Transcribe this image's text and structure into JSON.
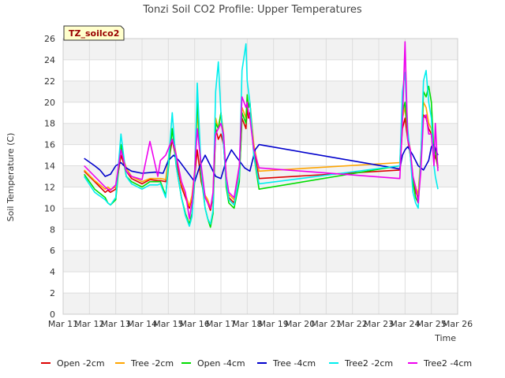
{
  "chart_data": {
    "type": "line",
    "title": "Tonzi Soil CO2 Profile: Upper Temperatures",
    "xlabel": "Time",
    "ylabel": "Soil Temperature (C)",
    "site_badge": "TZ_soilco2",
    "xlim": [
      0,
      15
    ],
    "ylim": [
      0,
      26
    ],
    "yticks": [
      0,
      2,
      4,
      6,
      8,
      10,
      12,
      14,
      16,
      18,
      20,
      22,
      24,
      26
    ],
    "yticks_labels": [
      "0",
      "2",
      "4",
      "6",
      "8",
      "10",
      "12",
      "14",
      "16",
      "18",
      "20",
      "22",
      "24",
      "26"
    ],
    "xticks": [
      0,
      1,
      2,
      3,
      4,
      5,
      6,
      7,
      8,
      9,
      10,
      11,
      12,
      13,
      14,
      15
    ],
    "xtick_labels": [
      "Mar 11",
      "Mar 12",
      "Mar 13",
      "Mar 14",
      "Mar 15",
      "Mar 16",
      "Mar 17",
      "Mar 18",
      "Mar 19",
      "Mar 20",
      "Mar 21",
      "Mar 22",
      "Mar 23",
      "Mar 24",
      "Mar 25",
      "Mar 26"
    ],
    "grid": true,
    "background_bands": true,
    "legend_position": "bottom",
    "series": [
      {
        "name": "Open -2cm",
        "color": "#dd0000",
        "x": [
          0.8,
          1.2,
          1.6,
          1.7,
          1.8,
          2.0,
          2.2,
          2.4,
          2.6,
          3.0,
          3.3,
          3.6,
          3.7,
          3.9,
          4.15,
          4.3,
          4.5,
          4.65,
          4.8,
          4.9,
          5.0,
          5.1,
          5.25,
          5.4,
          5.5,
          5.6,
          5.7,
          5.75,
          5.8,
          5.9,
          6.0,
          6.1,
          6.2,
          6.3,
          6.5,
          6.7,
          6.8,
          6.95,
          7.0,
          7.05,
          7.1,
          7.25,
          7.45,
          12.8,
          12.9,
          13.0,
          13.1,
          13.2,
          13.3,
          13.4,
          13.5,
          13.6,
          13.7,
          13.8,
          13.9,
          14.0,
          14.1,
          14.15,
          14.25
        ],
        "y": [
          13.5,
          12.5,
          11.5,
          11.7,
          11.5,
          11.8,
          15.0,
          13.5,
          12.8,
          12.3,
          12.7,
          12.6,
          12.6,
          12.5,
          16.5,
          14.5,
          12.0,
          11.0,
          10.0,
          11.0,
          13.0,
          15.5,
          12.5,
          11.0,
          10.5,
          9.8,
          11.0,
          14.0,
          17.5,
          16.5,
          17.0,
          16.0,
          12.5,
          11.0,
          10.5,
          13.0,
          18.5,
          17.5,
          19.5,
          18.5,
          19.0,
          15.5,
          12.8,
          13.6,
          17.5,
          18.5,
          16.5,
          15.0,
          12.5,
          11.5,
          11.0,
          14.5,
          18.8,
          18.5,
          17.5,
          17.0,
          14.5,
          15.0,
          13.8
        ]
      },
      {
        "name": "Tree -2cm",
        "color": "#ffa500",
        "x": [
          0.8,
          1.2,
          1.6,
          1.7,
          1.8,
          2.0,
          2.2,
          2.4,
          2.6,
          3.0,
          3.3,
          3.6,
          3.7,
          3.9,
          4.15,
          4.3,
          4.5,
          4.65,
          4.8,
          4.9,
          5.0,
          5.1,
          5.25,
          5.4,
          5.5,
          5.6,
          5.7,
          5.75,
          5.8,
          5.9,
          6.0,
          6.1,
          6.2,
          6.3,
          6.5,
          6.7,
          6.8,
          6.95,
          7.0,
          7.05,
          7.1,
          7.25,
          7.45,
          12.8,
          12.9,
          13.0,
          13.1,
          13.2,
          13.3,
          13.4,
          13.5,
          13.6,
          13.7,
          13.8,
          13.9,
          14.0,
          14.1,
          14.15,
          14.25
        ],
        "y": [
          13.6,
          12.6,
          11.8,
          12.0,
          11.8,
          12.0,
          15.5,
          13.8,
          13.0,
          12.5,
          12.8,
          12.8,
          12.8,
          12.7,
          17.5,
          15.0,
          12.3,
          11.3,
          10.2,
          11.2,
          13.5,
          19.2,
          13.0,
          11.2,
          10.8,
          10.0,
          11.3,
          15.0,
          18.5,
          17.5,
          19.0,
          17.0,
          13.0,
          11.3,
          10.8,
          13.5,
          19.5,
          18.5,
          20.5,
          19.5,
          20.0,
          16.0,
          13.5,
          14.3,
          18.5,
          19.5,
          17.0,
          15.5,
          13.0,
          12.0,
          11.3,
          15.0,
          20.0,
          19.5,
          18.0,
          17.5,
          15.0,
          15.5,
          14.0
        ]
      },
      {
        "name": "Open -4cm",
        "color": "#00dd00",
        "x": [
          0.8,
          1.2,
          1.6,
          1.7,
          1.8,
          2.0,
          2.2,
          2.4,
          2.6,
          3.0,
          3.3,
          3.6,
          3.7,
          3.9,
          4.15,
          4.3,
          4.5,
          4.65,
          4.8,
          4.9,
          5.0,
          5.1,
          5.25,
          5.4,
          5.5,
          5.6,
          5.7,
          5.75,
          5.8,
          5.9,
          6.0,
          6.1,
          6.2,
          6.3,
          6.5,
          6.7,
          6.8,
          6.95,
          7.0,
          7.05,
          7.1,
          7.25,
          7.45,
          12.8,
          12.9,
          13.0,
          13.1,
          13.2,
          13.3,
          13.4,
          13.5,
          13.6,
          13.7,
          13.8,
          13.9,
          14.0,
          14.1,
          14.15,
          14.25
        ],
        "y": [
          13.2,
          11.8,
          11.0,
          10.5,
          10.3,
          10.8,
          16.0,
          13.0,
          12.5,
          12.0,
          12.5,
          12.5,
          12.5,
          11.2,
          17.5,
          14.0,
          11.0,
          9.5,
          8.5,
          9.5,
          12.5,
          20.5,
          13.0,
          10.0,
          9.0,
          8.2,
          9.5,
          14.0,
          18.0,
          17.5,
          19.0,
          16.5,
          12.0,
          10.5,
          10.0,
          12.5,
          19.0,
          18.0,
          20.7,
          19.5,
          20.0,
          15.0,
          11.8,
          14.0,
          19.0,
          20.0,
          17.0,
          15.0,
          12.5,
          11.0,
          10.5,
          14.5,
          21.0,
          20.5,
          21.5,
          20.0,
          15.0,
          15.5,
          13.8
        ]
      },
      {
        "name": "Tree -4cm",
        "color": "#0000cc",
        "x": [
          0.8,
          1.2,
          1.4,
          1.6,
          1.8,
          2.0,
          2.2,
          2.4,
          2.6,
          3.0,
          3.5,
          3.8,
          4.0,
          4.2,
          4.4,
          4.7,
          5.0,
          5.2,
          5.4,
          5.6,
          5.8,
          6.0,
          6.2,
          6.4,
          6.6,
          6.9,
          7.1,
          7.3,
          7.45,
          12.8,
          12.9,
          13.0,
          13.1,
          13.3,
          13.5,
          13.7,
          13.9,
          14.0,
          14.1,
          14.25
        ],
        "y": [
          14.7,
          14.0,
          13.6,
          13.0,
          13.2,
          14.0,
          14.3,
          13.8,
          13.5,
          13.3,
          13.4,
          13.3,
          14.5,
          15.0,
          14.5,
          13.5,
          12.5,
          14.0,
          15.0,
          14.0,
          13.0,
          12.8,
          14.5,
          15.5,
          14.8,
          13.8,
          13.5,
          15.5,
          16.0,
          13.7,
          15.0,
          15.5,
          15.8,
          15.0,
          14.0,
          13.6,
          14.5,
          15.8,
          16.0,
          15.0
        ]
      },
      {
        "name": "Tree2 -2cm",
        "color": "#00eeee",
        "x": [
          0.8,
          1.2,
          1.6,
          1.7,
          1.8,
          2.0,
          2.2,
          2.4,
          2.6,
          3.0,
          3.3,
          3.6,
          3.7,
          3.9,
          4.15,
          4.3,
          4.5,
          4.65,
          4.8,
          4.9,
          5.0,
          5.1,
          5.25,
          5.4,
          5.5,
          5.6,
          5.7,
          5.75,
          5.8,
          5.9,
          6.0,
          6.1,
          6.2,
          6.3,
          6.5,
          6.7,
          6.8,
          6.95,
          7.0,
          7.05,
          7.1,
          7.25,
          7.45,
          12.8,
          12.9,
          13.0,
          13.1,
          13.2,
          13.3,
          13.4,
          13.5,
          13.6,
          13.7,
          13.8,
          13.9,
          14.0,
          14.1,
          14.15,
          14.25
        ],
        "y": [
          13.0,
          11.5,
          10.8,
          10.5,
          10.3,
          11.0,
          17.0,
          13.0,
          12.3,
          11.8,
          12.2,
          12.2,
          12.3,
          11.0,
          19.0,
          14.0,
          11.0,
          9.3,
          8.3,
          9.2,
          13.0,
          21.8,
          13.5,
          10.0,
          9.0,
          8.5,
          9.8,
          16.0,
          21.0,
          23.8,
          19.0,
          16.0,
          12.5,
          10.8,
          10.3,
          13.0,
          23.0,
          25.5,
          22.0,
          21.0,
          20.0,
          15.0,
          12.3,
          14.0,
          21.0,
          22.8,
          17.5,
          15.0,
          11.5,
          10.5,
          10.0,
          14.5,
          22.0,
          23.0,
          20.0,
          18.5,
          14.0,
          13.0,
          11.8
        ]
      },
      {
        "name": "Tree2 -4cm",
        "color": "#ee00ee",
        "x": [
          0.8,
          1.2,
          1.6,
          1.7,
          1.8,
          2.0,
          2.2,
          2.4,
          2.6,
          3.0,
          3.3,
          3.6,
          3.7,
          3.9,
          4.15,
          4.3,
          4.5,
          4.65,
          4.8,
          4.9,
          5.0,
          5.1,
          5.25,
          5.4,
          5.5,
          5.6,
          5.7,
          5.75,
          5.8,
          5.9,
          6.0,
          6.1,
          6.2,
          6.3,
          6.5,
          6.7,
          6.8,
          6.95,
          7.0,
          7.05,
          7.1,
          7.25,
          7.45,
          12.8,
          12.9,
          13.0,
          13.1,
          13.2,
          13.3,
          13.4,
          13.5,
          13.6,
          13.7,
          13.8,
          13.9,
          14.0,
          14.1,
          14.15,
          14.25
        ],
        "y": [
          14.0,
          13.0,
          12.0,
          11.8,
          11.7,
          12.2,
          15.5,
          13.5,
          13.0,
          12.7,
          16.3,
          13.0,
          14.5,
          15.0,
          16.5,
          15.0,
          12.5,
          11.5,
          9.0,
          10.5,
          13.5,
          17.5,
          14.0,
          11.0,
          10.5,
          10.0,
          11.5,
          15.0,
          17.0,
          17.5,
          18.0,
          17.0,
          13.0,
          11.5,
          11.0,
          14.0,
          20.5,
          19.5,
          20.0,
          19.0,
          18.5,
          15.5,
          13.8,
          12.8,
          18.0,
          25.7,
          16.5,
          15.5,
          13.0,
          12.0,
          10.5,
          13.5,
          18.5,
          18.8,
          17.0,
          17.0,
          14.0,
          18.0,
          13.5
        ]
      }
    ]
  }
}
